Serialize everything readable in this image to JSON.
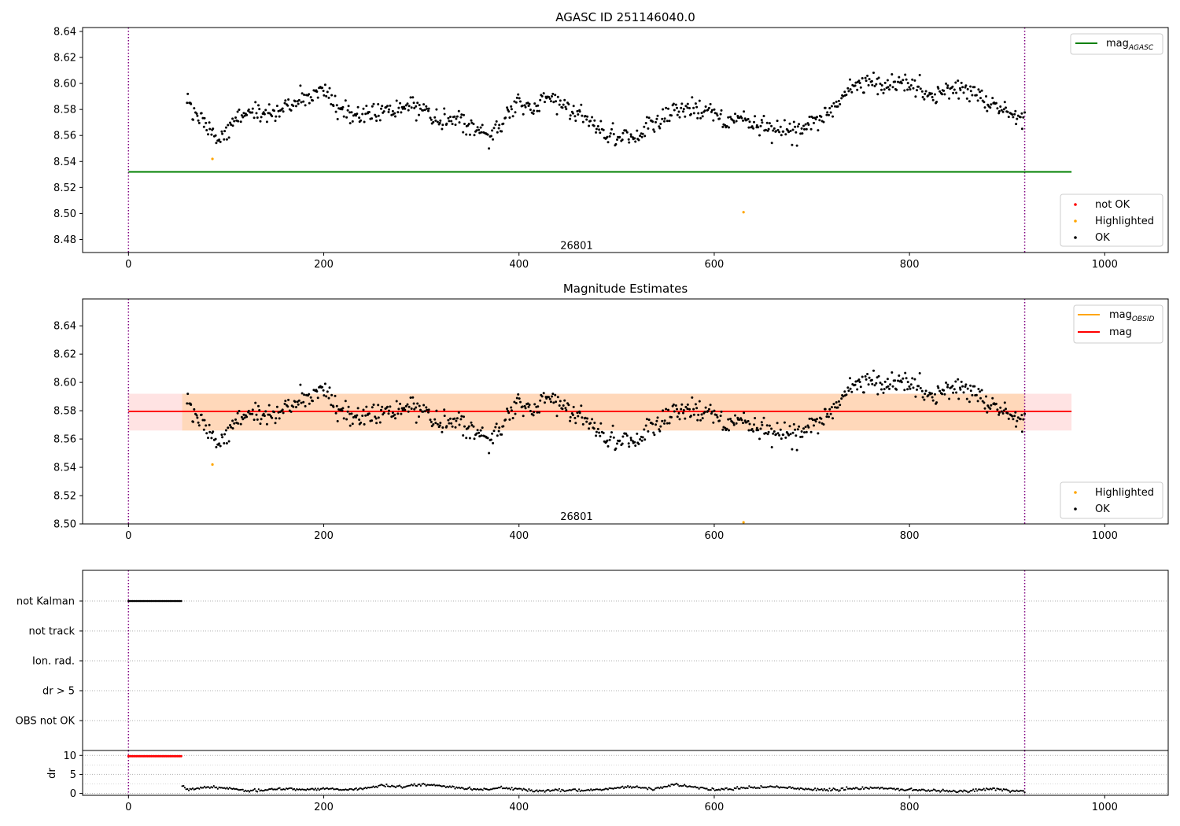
{
  "chart_data": [
    {
      "panel": "top",
      "type": "scatter",
      "title": "AGASC ID 251146040.0",
      "xlim": [
        -47,
        1065
      ],
      "ylim": [
        8.47,
        8.643
      ],
      "x_ticks": [
        0,
        200,
        400,
        600,
        800,
        1000
      ],
      "y_ticks": [
        8.48,
        8.5,
        8.52,
        8.54,
        8.56,
        8.58,
        8.6,
        8.62,
        8.64
      ],
      "vlines": [
        0,
        918
      ],
      "annotation": {
        "text": "26801",
        "x": 459,
        "y": 8.475
      },
      "lines": [
        {
          "name": "mag_AGASC",
          "label_main": "mag",
          "label_sub": "AGASC",
          "color": "#008000",
          "x": [
            0,
            966
          ],
          "y": [
            8.532,
            8.532
          ]
        }
      ],
      "legend_lines": {
        "placement": "top-right"
      },
      "legend_points": {
        "placement": "bottom-right",
        "entries": [
          {
            "name": "not OK",
            "color": "#ff0000"
          },
          {
            "name": "Highlighted",
            "color": "#ffa500"
          },
          {
            "name": "OK",
            "color": "#000000"
          }
        ]
      },
      "highlighted": [
        [
          86,
          8.542
        ],
        [
          630,
          8.501
        ]
      ],
      "ok_trend": {
        "x": [
          60,
          75,
          90,
          105,
          120,
          140,
          160,
          180,
          200,
          215,
          230,
          250,
          270,
          290,
          305,
          320,
          340,
          355,
          370,
          385,
          400,
          415,
          430,
          445,
          460,
          475,
          490,
          505,
          520,
          535,
          550,
          565,
          580,
          595,
          610,
          625,
          640,
          655,
          670,
          685,
          700,
          715,
          730,
          745,
          760,
          775,
          790,
          805,
          820,
          835,
          850,
          865,
          880,
          895,
          910,
          918
        ],
        "y": [
          8.585,
          8.57,
          8.556,
          8.57,
          8.577,
          8.578,
          8.581,
          8.59,
          8.596,
          8.578,
          8.575,
          8.577,
          8.579,
          8.584,
          8.578,
          8.572,
          8.572,
          8.566,
          8.558,
          8.576,
          8.586,
          8.58,
          8.592,
          8.584,
          8.576,
          8.57,
          8.56,
          8.558,
          8.557,
          8.569,
          8.573,
          8.582,
          8.58,
          8.58,
          8.572,
          8.575,
          8.569,
          8.566,
          8.563,
          8.564,
          8.571,
          8.575,
          8.587,
          8.6,
          8.601,
          8.598,
          8.602,
          8.597,
          8.591,
          8.595,
          8.597,
          8.592,
          8.584,
          8.58,
          8.574,
          8.575
        ]
      },
      "ok_count": 800,
      "ok_scatter": 0.008
    },
    {
      "panel": "middle",
      "type": "scatter",
      "title": "Magnitude Estimates",
      "xlim": [
        -47,
        1065
      ],
      "ylim": [
        8.5,
        8.659
      ],
      "x_ticks": [
        0,
        200,
        400,
        600,
        800,
        1000
      ],
      "y_ticks": [
        8.5,
        8.52,
        8.54,
        8.56,
        8.58,
        8.6,
        8.62,
        8.64
      ],
      "vlines": [
        0,
        918
      ],
      "annotation": {
        "text": "26801",
        "x": 459,
        "y": 8.505
      },
      "bands": [
        {
          "x": [
            0,
            966
          ],
          "y": [
            8.566,
            8.592
          ],
          "color": "#ff0000",
          "opacity": 0.11
        },
        {
          "x": [
            55,
            918
          ],
          "y": [
            8.566,
            8.592
          ],
          "color": "#ffa500",
          "opacity": 0.18
        }
      ],
      "lines": [
        {
          "name": "mag_OBSID",
          "label_main": "mag",
          "label_sub": "OBSID",
          "color": "#ffa500",
          "x": [
            55,
            918
          ],
          "y": [
            8.5795,
            8.5795
          ]
        },
        {
          "name": "mag",
          "label_main": "mag",
          "label_sub": "",
          "color": "#ff0000",
          "x": [
            0,
            966
          ],
          "y": [
            8.5795,
            8.5795
          ]
        }
      ],
      "legend_lines": {
        "placement": "top-right"
      },
      "legend_points": {
        "placement": "bottom-right",
        "entries": [
          {
            "name": "Highlighted",
            "color": "#ffa500"
          },
          {
            "name": "OK",
            "color": "#000000"
          }
        ]
      },
      "highlighted": [
        [
          86,
          8.542
        ],
        [
          630,
          8.501
        ]
      ],
      "ok_count": 800,
      "ok_scatter": 0.008
    },
    {
      "panel": "flags",
      "type": "scatter",
      "xlim": [
        -47,
        1065
      ],
      "categories": [
        "not Kalman",
        "not track",
        "Ion. rad.",
        "dr > 5",
        "OBS not OK"
      ],
      "grid": "horizontal dotted",
      "vlines": [
        0,
        918
      ],
      "points": [
        {
          "category": "not Kalman",
          "x_range": [
            0,
            54
          ],
          "count": 40,
          "color": "#000000"
        }
      ]
    },
    {
      "panel": "dr",
      "type": "scatter",
      "ylabel": "dr",
      "xlim": [
        -47,
        1065
      ],
      "ylim": [
        -0.5,
        11.3
      ],
      "x_ticks": [
        0,
        200,
        400,
        600,
        800,
        1000
      ],
      "y_ticks": [
        0,
        5,
        10
      ],
      "vlines": [
        0,
        918
      ],
      "saturated": {
        "x_range": [
          0,
          54
        ],
        "y": 9.8,
        "count": 40,
        "color": "#ff0000"
      },
      "dr_trend": {
        "x": [
          55,
          60,
          80,
          100,
          120,
          140,
          160,
          180,
          200,
          220,
          240,
          260,
          280,
          300,
          320,
          340,
          360,
          380,
          400,
          420,
          440,
          460,
          480,
          500,
          520,
          540,
          560,
          580,
          600,
          620,
          640,
          660,
          680,
          700,
          720,
          740,
          760,
          780,
          800,
          820,
          840,
          860,
          880,
          900,
          918
        ],
        "y": [
          2.2,
          1.0,
          1.6,
          1.4,
          0.8,
          0.9,
          1.2,
          1.0,
          1.3,
          1.0,
          1.4,
          2.0,
          1.8,
          2.4,
          2.0,
          1.5,
          1.0,
          1.4,
          1.2,
          0.6,
          1.0,
          0.8,
          1.1,
          1.4,
          1.7,
          1.2,
          2.4,
          1.6,
          1.0,
          1.2,
          1.6,
          1.8,
          1.4,
          1.0,
          0.9,
          1.2,
          1.5,
          1.2,
          1.0,
          0.8,
          0.7,
          0.6,
          1.2,
          0.8,
          0.6
        ]
      },
      "dr_count": 640
    }
  ]
}
